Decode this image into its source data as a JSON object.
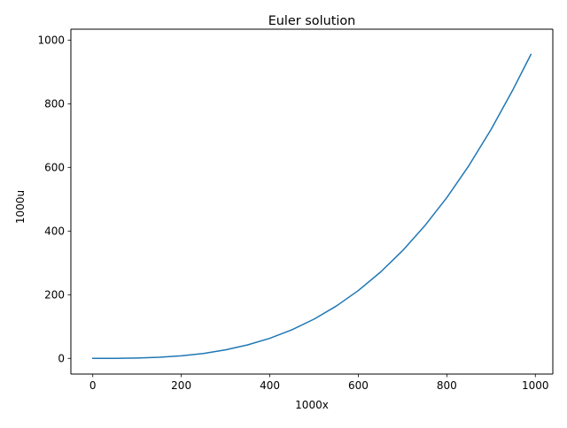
{
  "chart_data": {
    "type": "line",
    "title": "Euler solution",
    "xlabel": "1000x",
    "ylabel": "1000u",
    "xlim": [
      -49.5,
      1039.5
    ],
    "ylim": [
      -49.3,
      1034.3
    ],
    "xticks": [
      0,
      200,
      400,
      600,
      800,
      1000
    ],
    "xtick_labels": [
      "0",
      "200",
      "400",
      "600",
      "800",
      "1000"
    ],
    "yticks": [
      0,
      200,
      400,
      600,
      800,
      1000
    ],
    "ytick_labels": [
      "0",
      "200",
      "400",
      "600",
      "800",
      "1000"
    ],
    "grid": false,
    "series": [
      {
        "color": "#1f77b4",
        "x": [
          0,
          50,
          100,
          150,
          200,
          250,
          300,
          350,
          400,
          450,
          500,
          550,
          600,
          650,
          700,
          750,
          800,
          850,
          900,
          950,
          990
        ],
        "y": [
          0,
          0.1,
          1,
          3.4,
          7.9,
          15.4,
          26.7,
          42.3,
          63.1,
          89.9,
          123.3,
          164.1,
          213.1,
          270.9,
          338.4,
          416.3,
          505.2,
          606.0,
          719.3,
          845.8,
          955.0
        ]
      }
    ]
  }
}
